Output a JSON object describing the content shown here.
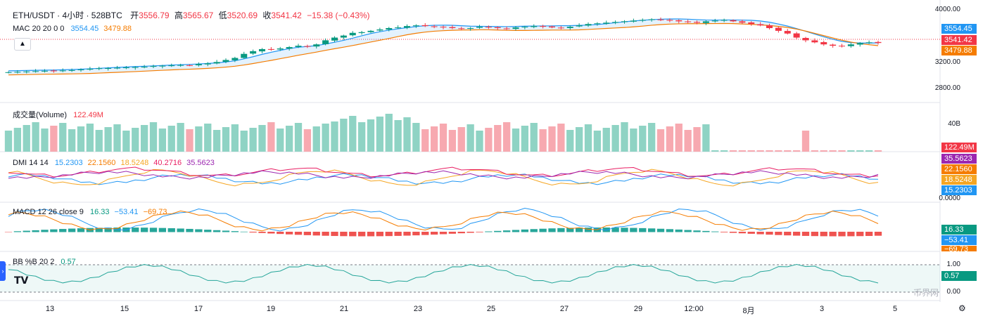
{
  "header": {
    "symbol": "ETH/USDT · 4小时 · 528BTC",
    "open_label": "开",
    "open": "3556.79",
    "high_label": "高",
    "high": "3565.67",
    "low_label": "低",
    "low": "3520.69",
    "close_label": "收",
    "close": "3541.42",
    "change": "−15.38 (−0.43%)"
  },
  "indicators": {
    "mac": {
      "label": "MAC 20 20 0 0",
      "v1": "3554.45",
      "v2": "3479.88"
    },
    "volume": {
      "label": "成交量(Volume)",
      "value": "122.49M"
    },
    "dmi": {
      "label": "DMI 14 14",
      "v1": "15.2303",
      "v2": "22.1560",
      "v3": "18.5248",
      "v4": "40.2716",
      "v5": "35.5623"
    },
    "macd": {
      "label": "MACD 12 26 close 9",
      "v1": "16.33",
      "v2": "−53.41",
      "v3": "−69.73"
    },
    "bb": {
      "label": "BB %B 20 2",
      "v1": "0.57"
    }
  },
  "price_axis": [
    "4000.00",
    "3200.00",
    "2800.00"
  ],
  "volume_axis": [
    "40B"
  ],
  "dmi_axis": [
    "0.0000"
  ],
  "bb_axis": [
    "1.00",
    "0.00"
  ],
  "price_tags": [
    {
      "text": "3554.45",
      "color": "#2196f3"
    },
    {
      "text": "3541.42",
      "color": "#f23645"
    },
    {
      "text": "3479.88",
      "color": "#f57c00"
    }
  ],
  "other_tags": {
    "volume": {
      "text": "122.49M",
      "color": "#f23645"
    },
    "dmi": [
      {
        "text": "35.5623",
        "color": "#9c27b0"
      },
      {
        "text": "22.1560",
        "color": "#f57c00"
      },
      {
        "text": "18.5248",
        "color": "#f5a623"
      },
      {
        "text": "15.2303",
        "color": "#2196f3"
      }
    ],
    "macd": [
      {
        "text": "16.33",
        "color": "#089981"
      },
      {
        "text": "−53.41",
        "color": "#2196f3"
      },
      {
        "text": "−69.73",
        "color": "#f57c00"
      }
    ],
    "bb": {
      "text": "0.57",
      "color": "#089981"
    }
  },
  "x_axis": [
    "13",
    "15",
    "17",
    "19",
    "21",
    "23",
    "25",
    "27",
    "29",
    "12:00",
    "8月",
    "3",
    "5"
  ],
  "colors": {
    "up": "#089981",
    "down": "#f23645",
    "ma_fast": "#2196f3",
    "ma_slow": "#f57c00"
  },
  "chart_data": {
    "type": "line",
    "title": "ETH/USDT · 4小时 · 528BTC",
    "price_range": [
      2650,
      4050
    ],
    "close_series": [
      3110,
      3115,
      3120,
      3125,
      3130,
      3128,
      3135,
      3140,
      3150,
      3160,
      3168,
      3170,
      3175,
      3180,
      3185,
      3190,
      3200,
      3205,
      3210,
      3215,
      3210,
      3230,
      3240,
      3260,
      3290,
      3320,
      3380,
      3420,
      3450,
      3440,
      3460,
      3480,
      3500,
      3490,
      3520,
      3580,
      3620,
      3650,
      3690,
      3700,
      3720,
      3740,
      3760,
      3770,
      3790,
      3800,
      3790,
      3780,
      3770,
      3760,
      3750,
      3760,
      3780,
      3770,
      3760,
      3750,
      3770,
      3780,
      3790,
      3780,
      3770,
      3760,
      3780,
      3800,
      3820,
      3830,
      3840,
      3850,
      3860,
      3870,
      3880,
      3890,
      3880,
      3870,
      3860,
      3850,
      3840,
      3860,
      3870,
      3880,
      3860,
      3840,
      3820,
      3800,
      3760,
      3720,
      3680,
      3620,
      3580,
      3550,
      3520,
      3500,
      3490,
      3520,
      3540,
      3550,
      3541
    ]
  }
}
